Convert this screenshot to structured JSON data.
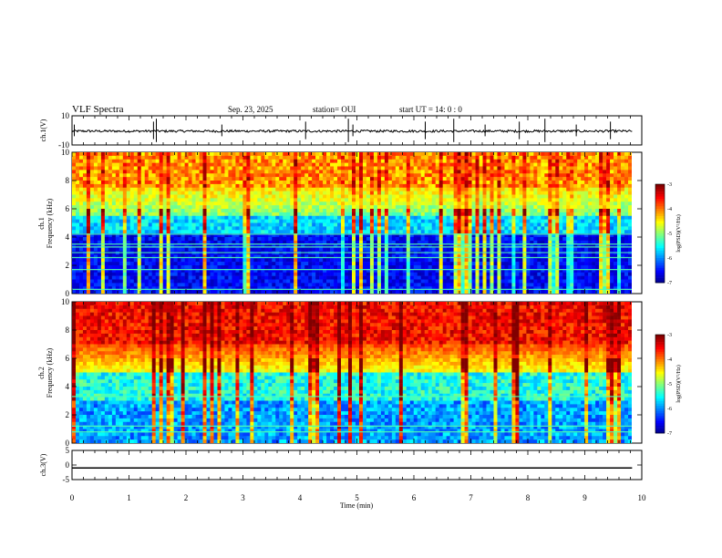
{
  "header": {
    "title": "VLF Spectra",
    "date": "Sep. 23, 2025",
    "station": "station= OUI",
    "start_ut": "start  UT =  14: 0  : 0"
  },
  "chart_data": [
    {
      "id": "ch1-waveform",
      "type": "line",
      "ylabel": "ch.1(V)",
      "ylim": [
        -10,
        10
      ],
      "yticks": [
        "10",
        "-10"
      ],
      "description_series": "voltage trace ~ -0.5 V baseline with spikes",
      "spikes_min": [
        0.04,
        1.43,
        1.48,
        2.63,
        4.1,
        4.85,
        4.93,
        6.2,
        6.7,
        7.25,
        7.85,
        8.3,
        8.85,
        9.45
      ],
      "xlim": [
        0,
        10
      ]
    },
    {
      "id": "ch1-spectrogram",
      "type": "heatmap",
      "ylabel_top": "ch.1",
      "ylabel": "Frequency (kHz)",
      "ylim": [
        0,
        10
      ],
      "yticks": [
        "0",
        "2",
        "4",
        "6",
        "8",
        "10"
      ],
      "xlim": [
        0,
        9.83
      ],
      "colorbar_label": "log(PSD)(V²/Hz)",
      "colorbar_ticks": [
        "-3",
        "-4",
        "-5",
        "-6",
        "-7"
      ],
      "colorbar_range": [
        -7,
        -3
      ],
      "bright_lines_khz": [
        0.3,
        1.7,
        2.55,
        2.9,
        3.3,
        3.5,
        4.2
      ]
    },
    {
      "id": "ch2-spectrogram",
      "type": "heatmap",
      "ylabel_top": "ch.2",
      "ylabel": "Frequency (kHz)",
      "ylim": [
        0,
        10
      ],
      "yticks": [
        "0",
        "2",
        "4",
        "6",
        "8",
        "10"
      ],
      "xlim": [
        0,
        9.83
      ],
      "colorbar_label": "log(PSD)(V²/Hz)",
      "colorbar_ticks": [
        "-3",
        "-4",
        "-5",
        "-6",
        "-7"
      ],
      "colorbar_range": [
        -7,
        -3
      ],
      "bright_lines_khz": [
        0.8,
        1.2,
        3.3
      ]
    },
    {
      "id": "ch3-waveform",
      "type": "line",
      "ylabel": "ch.3(V)",
      "ylim": [
        -5,
        5
      ],
      "yticks": [
        "5",
        "0",
        "-5"
      ],
      "constant_value": -1.0,
      "xlim": [
        0,
        10
      ]
    }
  ],
  "xaxis": {
    "label": "Time (min)",
    "ticks": [
      "0",
      "1",
      "2",
      "3",
      "4",
      "5",
      "6",
      "7",
      "8",
      "9",
      "10"
    ],
    "range": [
      0,
      10
    ]
  }
}
